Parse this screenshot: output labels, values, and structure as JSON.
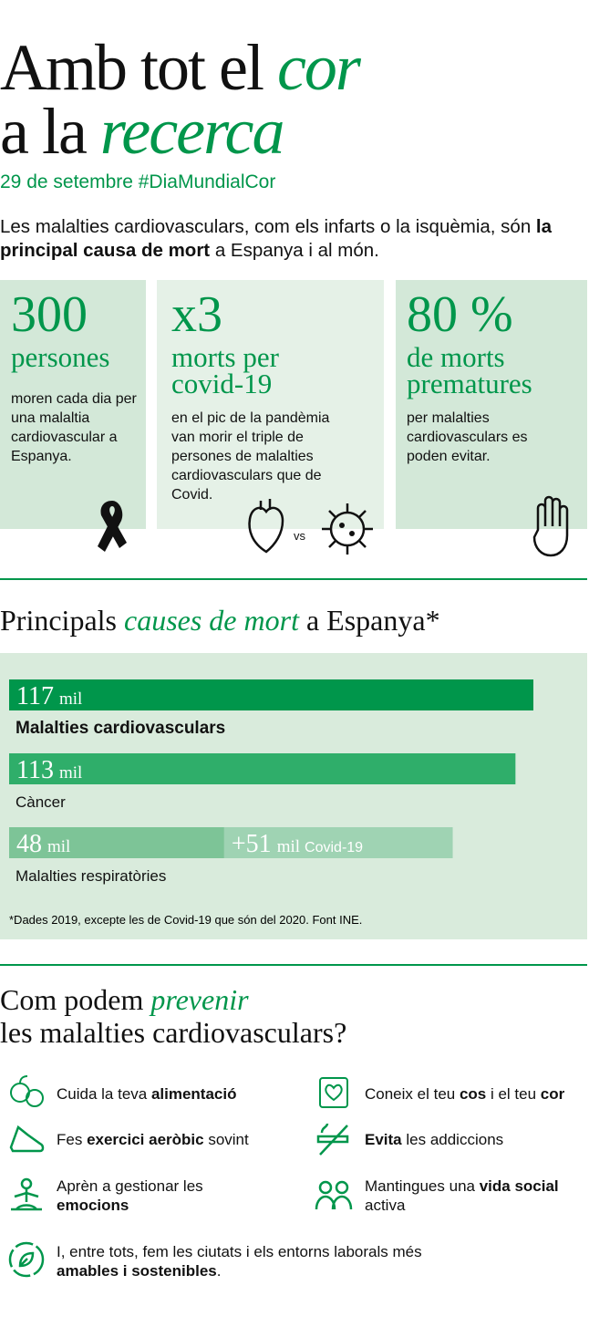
{
  "header": {
    "title_line1": [
      "Amb tot el",
      "cor"
    ],
    "title_line2": [
      "a la",
      "recerca"
    ],
    "subtitle": "29 de setembre #DiaMundialCor",
    "intro": [
      "Les malalties cardiovasculars, com els infarts o la isquèmia, són ",
      "la principal causa de mort",
      " a Espanya i al món."
    ]
  },
  "cards": [
    {
      "big": "300",
      "label": "persones",
      "text": "moren cada dia per una malaltia cardiovascular a Espanya."
    },
    {
      "big": "x3",
      "label": "morts per covid-19",
      "text": "en el pic de la pandèmia van morir el triple de persones de malalties cardiovasculars que de Covid.",
      "vs": "vs"
    },
    {
      "big": "80 %",
      "label": "de morts prematures",
      "text": "per malalties cardiovasculars es poden evitar."
    }
  ],
  "chart_data": {
    "type": "bar",
    "title": [
      "Principals",
      "causes de mort",
      "a Espanya*"
    ],
    "unit": "mil",
    "categories": [
      "Malalties cardiovasculars",
      "Càncer",
      "Malalties respiratòries"
    ],
    "series": [
      {
        "values": [
          117,
          113,
          48
        ],
        "colors": [
          "#00964b",
          "#2fae6a",
          "#7dc497"
        ]
      },
      {
        "name": "Covid-19",
        "values": [
          null,
          null,
          51
        ],
        "value_labels": [
          null,
          null,
          "+51"
        ],
        "color": "#9fd3b3"
      }
    ],
    "footnote": "*Dades 2019, excepte les de Covid-19 que són del 2020. Font INE."
  },
  "prevention": {
    "title_line1": [
      "Com podem",
      "prevenir"
    ],
    "title_line2": "les malalties cardiovasculars?",
    "items": [
      [
        "Cuida la teva ",
        "alimentació"
      ],
      [
        "Coneix el teu ",
        "cos",
        " i el teu ",
        "cor"
      ],
      [
        "Fes ",
        "exercici aeròbic",
        " sovint"
      ],
      [
        "Evita",
        " les addiccions"
      ],
      [
        "Aprèn a gestionar les ",
        "emocions"
      ],
      [
        "Mantingues una ",
        "vida social",
        " activa"
      ],
      [
        "I, entre tots, fem les ciutats i els entorns laborals més ",
        "amables i sostenibles",
        "."
      ]
    ]
  }
}
